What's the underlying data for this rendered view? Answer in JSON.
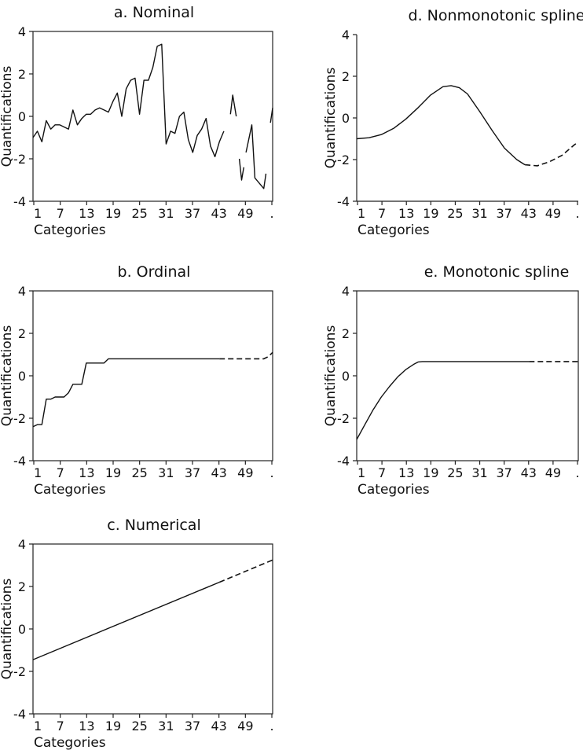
{
  "chart_data": [
    {
      "id": "a",
      "type": "line",
      "title": "a. Nominal",
      "xlabel": "Categories",
      "ylabel": "Quantifications",
      "box": true,
      "xlim": [
        1,
        55
      ],
      "ylim": [
        -4,
        4
      ],
      "xticks": [
        "1",
        "7",
        "13",
        "19",
        "25",
        "31",
        "37",
        "43",
        "49",
        "."
      ],
      "yticks": [
        "4",
        "2",
        "0",
        "-2",
        "-4"
      ],
      "series": [
        {
          "style": "solid",
          "points": [
            [
              1,
              -1.0
            ],
            [
              2,
              -0.7
            ],
            [
              3,
              -1.2
            ],
            [
              4,
              -0.2
            ],
            [
              5,
              -0.6
            ],
            [
              6,
              -0.4
            ],
            [
              7,
              -0.4
            ],
            [
              8,
              -0.5
            ],
            [
              9,
              -0.6
            ],
            [
              10,
              0.3
            ],
            [
              11,
              -0.4
            ],
            [
              12,
              -0.1
            ],
            [
              13,
              0.1
            ],
            [
              14,
              0.1
            ],
            [
              15,
              0.3
            ],
            [
              16,
              0.4
            ],
            [
              17,
              0.3
            ],
            [
              18,
              0.2
            ],
            [
              19,
              0.7
            ],
            [
              20,
              1.1
            ],
            [
              21,
              0.0
            ],
            [
              22,
              1.3
            ],
            [
              23,
              1.7
            ],
            [
              24,
              1.8
            ],
            [
              25,
              0.1
            ],
            [
              26,
              1.7
            ],
            [
              27,
              1.7
            ],
            [
              28,
              2.3
            ],
            [
              29,
              3.3
            ],
            [
              30,
              3.4
            ],
            [
              31,
              -1.3
            ],
            [
              32,
              -0.7
            ],
            [
              33,
              -0.8
            ],
            [
              34,
              0.0
            ],
            [
              35,
              0.2
            ],
            [
              36,
              -1.1
            ],
            [
              37,
              -1.7
            ],
            [
              38,
              -0.9
            ],
            [
              39,
              -0.6
            ],
            [
              40,
              -0.1
            ],
            [
              41,
              -1.4
            ],
            [
              42,
              -1.9
            ],
            [
              43,
              -1.2
            ],
            [
              44,
              -0.7
            ]
          ]
        },
        {
          "style": "solid",
          "points": [
            [
              45.5,
              0.1
            ],
            [
              46,
              1.0
            ],
            [
              46.8,
              0.0
            ]
          ]
        },
        {
          "style": "solid",
          "points": [
            [
              47.5,
              -2.0
            ],
            [
              48,
              -3.0
            ],
            [
              48.5,
              -2.4
            ]
          ]
        },
        {
          "style": "solid",
          "points": [
            [
              49,
              -1.7
            ],
            [
              50.3,
              -0.4
            ],
            [
              51,
              -2.9
            ],
            [
              52.2,
              -3.2
            ],
            [
              53,
              -3.4
            ],
            [
              53.5,
              -2.7
            ]
          ]
        },
        {
          "style": "solid",
          "points": [
            [
              54.5,
              -0.3
            ],
            [
              55,
              0.4
            ]
          ]
        }
      ]
    },
    {
      "id": "d",
      "type": "line",
      "title": "d. Nonmonotonic spline",
      "xlabel": "Categories",
      "ylabel": "Quantifications",
      "box": false,
      "xlim": [
        1,
        55
      ],
      "ylim": [
        -4,
        4
      ],
      "xticks": [
        "1",
        "7",
        "13",
        "19",
        "25",
        "31",
        "37",
        "43",
        "49",
        "."
      ],
      "yticks": [
        "4",
        "2",
        "0",
        "-2",
        "-4"
      ],
      "series": [
        {
          "style": "solid",
          "points": [
            [
              1,
              -1.0
            ],
            [
              4,
              -0.95
            ],
            [
              7,
              -0.8
            ],
            [
              10,
              -0.5
            ],
            [
              13,
              -0.05
            ],
            [
              16,
              0.5
            ],
            [
              19,
              1.1
            ],
            [
              22,
              1.5
            ],
            [
              24,
              1.55
            ],
            [
              26,
              1.45
            ],
            [
              28,
              1.15
            ],
            [
              31,
              0.3
            ],
            [
              34,
              -0.6
            ],
            [
              37,
              -1.45
            ],
            [
              40,
              -2.0
            ],
            [
              42,
              -2.25
            ]
          ]
        },
        {
          "style": "dashed",
          "points": [
            [
              42,
              -2.25
            ],
            [
              45,
              -2.3
            ],
            [
              48,
              -2.1
            ],
            [
              51,
              -1.8
            ],
            [
              54,
              -1.3
            ],
            [
              55,
              -1.15
            ]
          ]
        }
      ]
    },
    {
      "id": "b",
      "type": "line",
      "title": "b. Ordinal",
      "xlabel": "Categories",
      "ylabel": "Quantifications",
      "box": true,
      "xlim": [
        1,
        55
      ],
      "ylim": [
        -4,
        4
      ],
      "xticks": [
        "1",
        "7",
        "13",
        "19",
        "25",
        "31",
        "37",
        "43",
        "49",
        "."
      ],
      "yticks": [
        "4",
        "2",
        "0",
        "-2",
        "-4"
      ],
      "series": [
        {
          "style": "solid",
          "points": [
            [
              1,
              -2.4
            ],
            [
              2,
              -2.3
            ],
            [
              3,
              -2.3
            ],
            [
              4,
              -1.1
            ],
            [
              5,
              -1.1
            ],
            [
              6,
              -1.0
            ],
            [
              7,
              -1.0
            ],
            [
              8,
              -1.0
            ],
            [
              9,
              -0.8
            ],
            [
              10,
              -0.4
            ],
            [
              11,
              -0.4
            ],
            [
              12,
              -0.4
            ],
            [
              13,
              0.6
            ],
            [
              14,
              0.6
            ],
            [
              15,
              0.6
            ],
            [
              16,
              0.6
            ],
            [
              17,
              0.6
            ],
            [
              18,
              0.8
            ],
            [
              19,
              0.8
            ],
            [
              43,
              0.8
            ]
          ]
        },
        {
          "style": "dashed",
          "points": [
            [
              43,
              0.8
            ],
            [
              53,
              0.8
            ],
            [
              54,
              0.9
            ],
            [
              55,
              1.1
            ]
          ]
        }
      ]
    },
    {
      "id": "e",
      "type": "line",
      "title": "e. Monotonic spline",
      "xlabel": "Categories",
      "ylabel": "Quantifications",
      "box": true,
      "xlim": [
        1,
        55
      ],
      "ylim": [
        -4,
        4
      ],
      "xticks": [
        "1",
        "7",
        "13",
        "19",
        "25",
        "31",
        "37",
        "43",
        "49",
        "."
      ],
      "yticks": [
        "4",
        "2",
        "0",
        "-2",
        "-4"
      ],
      "series": [
        {
          "style": "solid",
          "points": [
            [
              1,
              -3.0
            ],
            [
              3,
              -2.3
            ],
            [
              5,
              -1.6
            ],
            [
              7,
              -1.0
            ],
            [
              9,
              -0.5
            ],
            [
              11,
              -0.05
            ],
            [
              13,
              0.3
            ],
            [
              15,
              0.55
            ],
            [
              16,
              0.65
            ],
            [
              17,
              0.67
            ],
            [
              43,
              0.67
            ]
          ]
        },
        {
          "style": "dashed",
          "points": [
            [
              43,
              0.67
            ],
            [
              55,
              0.67
            ]
          ]
        }
      ]
    },
    {
      "id": "c",
      "type": "line",
      "title": "c. Numerical",
      "xlabel": "Categories",
      "ylabel": "Quantifications",
      "box": true,
      "xlim": [
        1,
        55
      ],
      "ylim": [
        -4,
        4
      ],
      "xticks": [
        "1",
        "7",
        "13",
        "19",
        "25",
        "31",
        "37",
        "43",
        "49",
        "."
      ],
      "yticks": [
        "4",
        "2",
        "0",
        "-2",
        "-4"
      ],
      "series": [
        {
          "style": "solid",
          "points": [
            [
              1,
              -1.45
            ],
            [
              43,
              2.2
            ]
          ]
        },
        {
          "style": "dashed",
          "points": [
            [
              43,
              2.2
            ],
            [
              55,
              3.25
            ]
          ]
        }
      ]
    }
  ]
}
